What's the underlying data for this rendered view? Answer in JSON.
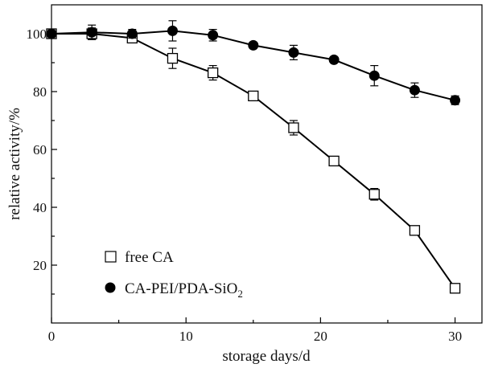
{
  "chart_data": {
    "type": "line",
    "title": "",
    "xlabel": "storage days/d",
    "ylabel": "relative activity/%",
    "xlim": [
      0,
      32
    ],
    "ylim": [
      0,
      110
    ],
    "xticks": [
      0,
      10,
      20,
      30
    ],
    "yticks": [
      20,
      40,
      60,
      80,
      100
    ],
    "grid": false,
    "legend_position": "bottom-left",
    "series": [
      {
        "name": "free CA",
        "marker": "open-square",
        "x": [
          0,
          3,
          6,
          9,
          12,
          15,
          18,
          21,
          24,
          27,
          30
        ],
        "y": [
          100,
          100,
          98.5,
          91.5,
          86.5,
          78.5,
          67.5,
          56,
          44.5,
          32,
          12
        ],
        "err": [
          1.2,
          2,
          1.2,
          3.5,
          2.5,
          1,
          2.5,
          1.5,
          2,
          1,
          1
        ]
      },
      {
        "name": "CA-PEI/PDA-SiO",
        "name_subscript": "2",
        "marker": "filled-circle",
        "x": [
          0,
          3,
          6,
          9,
          12,
          15,
          18,
          21,
          24,
          27,
          30
        ],
        "y": [
          100,
          100.5,
          100,
          101,
          99.5,
          96,
          93.5,
          91,
          85.5,
          80.5,
          77
        ],
        "err": [
          1,
          2.5,
          1.5,
          3.5,
          2,
          1,
          2.5,
          1,
          3.5,
          2.5,
          1.5
        ]
      }
    ]
  }
}
